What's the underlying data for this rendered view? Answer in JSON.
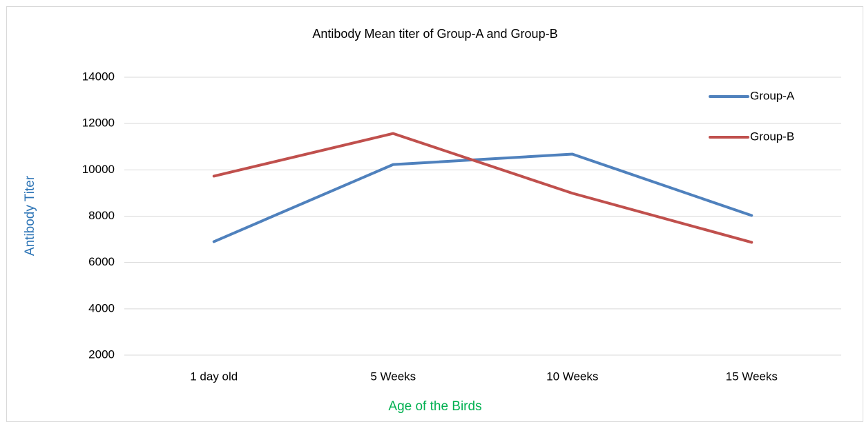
{
  "chart_data": {
    "type": "line",
    "title": "Antibody Mean titer of Group-A and Group-B",
    "x_label": "Age of the Birds",
    "y_label": "Antibody  Titer",
    "categories": [
      "1 day old",
      "5 Weeks",
      "10 Weeks",
      "15 Weeks"
    ],
    "series": [
      {
        "name": "Group-A",
        "color": "#4f81bd",
        "values": [
          6900,
          10230,
          10680,
          8030
        ]
      },
      {
        "name": "Group-B",
        "color": "#c0504d",
        "values": [
          9730,
          11570,
          8990,
          6870
        ]
      }
    ],
    "ylim": [
      2000,
      14000
    ],
    "yticks": [
      2000,
      4000,
      6000,
      8000,
      10000,
      12000,
      14000
    ],
    "grid": true,
    "legend": "top-right"
  }
}
